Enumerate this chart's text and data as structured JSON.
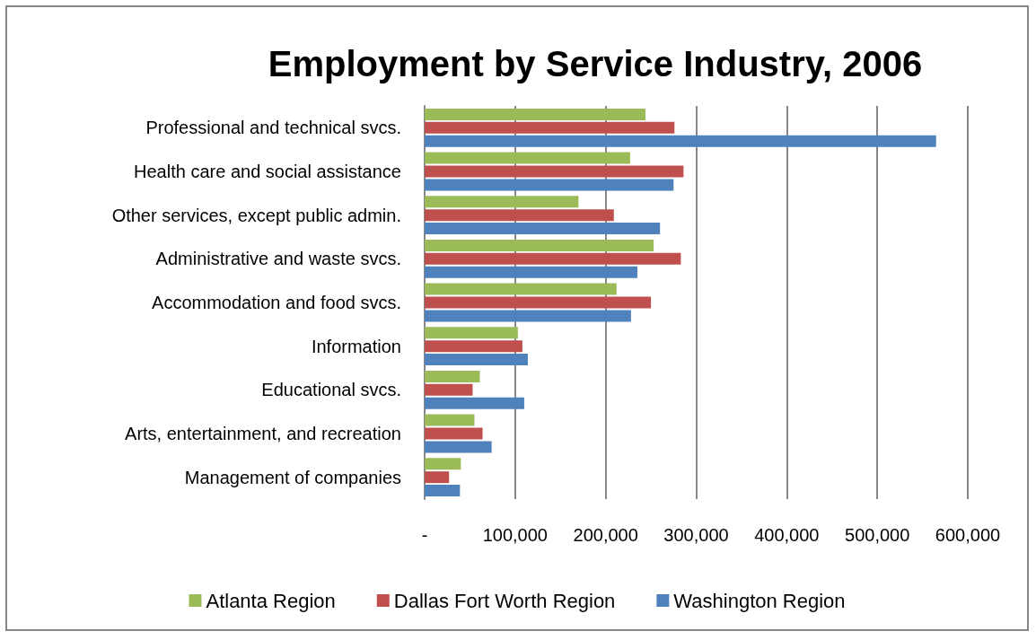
{
  "chart_data": {
    "type": "bar",
    "orientation": "horizontal",
    "title": "Employment by Service Industry, 2006",
    "categories": [
      "Professional and technical svcs.",
      "Health care and social assistance",
      "Other services, except public admin.",
      "Administrative and waste svcs.",
      "Accommodation and food svcs.",
      "Information",
      "Educational svcs.",
      "Arts, entertainment, and recreation",
      "Management of companies"
    ],
    "series": [
      {
        "name": "Atlanta Region",
        "color": "#9bbb59",
        "values": [
          244000,
          227000,
          170000,
          253000,
          212000,
          103000,
          61000,
          55000,
          40000
        ]
      },
      {
        "name": "Dallas Fort Worth Region",
        "color": "#c0504d",
        "values": [
          276000,
          286000,
          209000,
          283000,
          250000,
          108000,
          53000,
          64000,
          27000
        ]
      },
      {
        "name": "Washington Region",
        "color": "#4f81bd",
        "values": [
          565000,
          275000,
          260000,
          235000,
          228000,
          114000,
          110000,
          74000,
          39000
        ]
      }
    ],
    "xlim": [
      0,
      600000
    ],
    "xticks": [
      {
        "value": 0,
        "label": "-"
      },
      {
        "value": 100000,
        "label": "100,000"
      },
      {
        "value": 200000,
        "label": "200,000"
      },
      {
        "value": 300000,
        "label": "300,000"
      },
      {
        "value": 400000,
        "label": "400,000"
      },
      {
        "value": 500000,
        "label": "500,000"
      },
      {
        "value": 600000,
        "label": "600,000"
      }
    ],
    "grid": "x",
    "legend": "bottom"
  }
}
